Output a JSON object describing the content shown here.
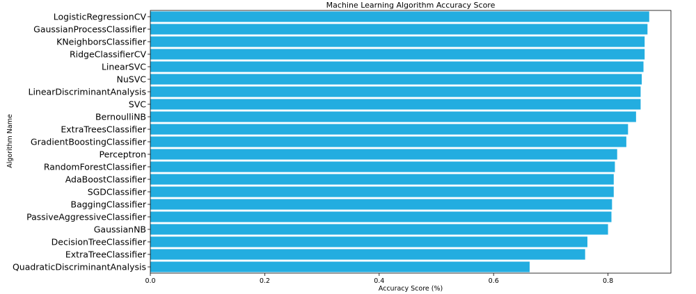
{
  "chart_data": {
    "type": "bar",
    "orientation": "horizontal",
    "title": "Machine Learning Algorithm Accuracy Score",
    "xlabel": "Accuracy Score (%)",
    "ylabel": "Algorithm Name",
    "xlim": [
      0,
      0.91
    ],
    "xticks": [
      "0.0",
      "0.2",
      "0.4",
      "0.6",
      "0.8"
    ],
    "grid": false,
    "bar_color": "#23ade0",
    "categories": [
      "LogisticRegressionCV",
      "GaussianProcessClassifier",
      "KNeighborsClassifier",
      "RidgeClassifierCV",
      "LinearSVC",
      "NuSVC",
      "LinearDiscriminantAnalysis",
      "SVC",
      "BernoulliNB",
      "ExtraTreesClassifier",
      "GradientBoostingClassifier",
      "Perceptron",
      "RandomForestClassifier",
      "AdaBoostClassifier",
      "SGDClassifier",
      "BaggingClassifier",
      "PassiveAggressiveClassifier",
      "GaussianNB",
      "DecisionTreeClassifier",
      "ExtraTreeClassifier",
      "QuadraticDiscriminantAnalysis"
    ],
    "values": [
      0.872,
      0.869,
      0.864,
      0.864,
      0.862,
      0.859,
      0.857,
      0.857,
      0.849,
      0.835,
      0.832,
      0.816,
      0.812,
      0.81,
      0.81,
      0.807,
      0.806,
      0.8,
      0.764,
      0.76,
      0.663
    ]
  }
}
